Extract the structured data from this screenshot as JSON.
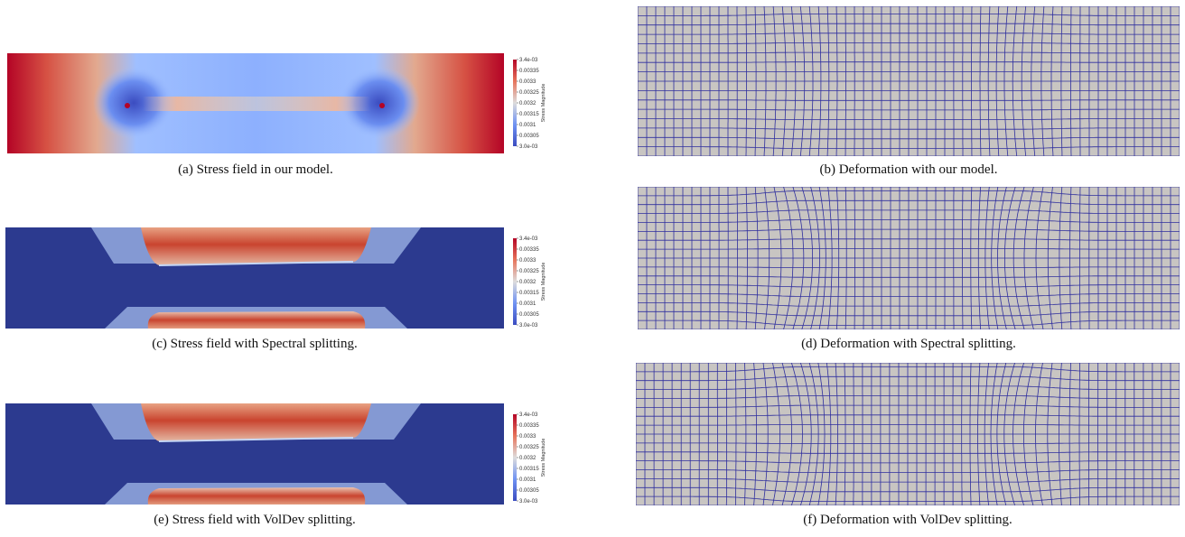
{
  "panels": [
    {
      "id": "a",
      "caption": "(a) Stress field in our model.",
      "field": "ours"
    },
    {
      "id": "b",
      "caption": "(b) Deformation with our model.",
      "mesh": "ours"
    },
    {
      "id": "c",
      "caption": "(c) Stress field with Spectral splitting.",
      "field": "spectral"
    },
    {
      "id": "d",
      "caption": "(d) Deformation with Spectral splitting.",
      "mesh": "spectral"
    },
    {
      "id": "e",
      "caption": "(e) Stress field with VolDev splitting.",
      "field": "voldev"
    },
    {
      "id": "f",
      "caption": "(f) Deformation with VolDev splitting.",
      "mesh": "voldev"
    }
  ],
  "colorbar": {
    "title": "Stress Magnitude",
    "ticks": [
      "3.4e-03",
      "0.00335",
      "0.0033",
      "0.00325",
      "0.0032",
      "0.00315",
      "0.0031",
      "0.00305",
      "3.0e-03"
    ],
    "colors": [
      "#b40426",
      "#e7745b",
      "#dddcdc",
      "#6f92f3",
      "#3b4cc0"
    ]
  },
  "colors": {
    "field_low": "#3b4cc0",
    "field_dark": "#2c3a8f",
    "field_high": "#b40426",
    "mesh_face": "#c8c5c2",
    "mesh_line": "#2f2f9e"
  }
}
